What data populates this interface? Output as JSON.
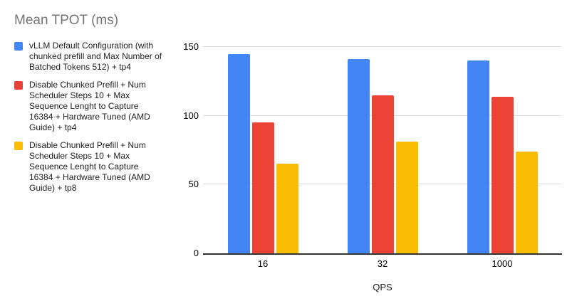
{
  "chart_data": {
    "type": "bar",
    "title": "Mean TPOT (ms)",
    "xlabel": "QPS",
    "ylabel": "",
    "categories": [
      "16",
      "32",
      "1000"
    ],
    "series": [
      {
        "name": "vLLM Default Configuration (with chunked prefill and Max Number of Batched Tokens 512) + tp4",
        "color": "#4285F4",
        "values": [
          145,
          141,
          140
        ]
      },
      {
        "name": "Disable Chunked Prefill + Num Scheduler Steps 10 + Max Sequence Lenght to Capture 16384 + Hardware Tuned (AMD Guide) + tp4",
        "color": "#EA4335",
        "values": [
          95,
          115,
          114
        ]
      },
      {
        "name": "Disable Chunked Prefill + Num Scheduler Steps 10 + Max Sequence Lenght to Capture 16384 + Hardware Tuned (AMD Guide) + tp8",
        "color": "#FBBC04",
        "values": [
          65,
          81,
          74
        ]
      }
    ],
    "ylim": [
      0,
      150
    ],
    "yticks": [
      0,
      50,
      100,
      150
    ],
    "grid": true,
    "legend_position": "left",
    "title_color": "#757575",
    "axis_line_color": "#333333",
    "gridline_color": "#dcdcdc"
  }
}
